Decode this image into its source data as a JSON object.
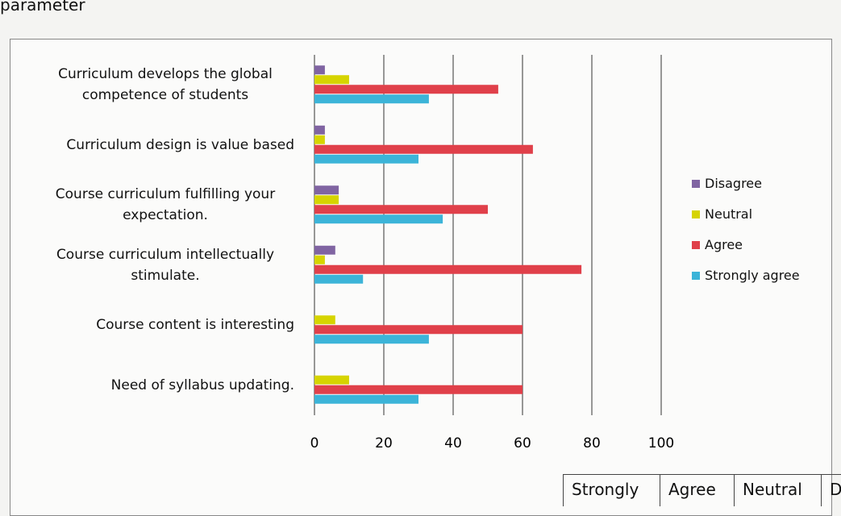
{
  "caption": "parameter",
  "chart_data": {
    "type": "hbar",
    "categories": [
      "Curriculum develops the global competence of students",
      "Curriculum design is value based",
      "Course curriculum fulfilling your expectation.",
      "Course curriculum intellectually stimulate.",
      "Course content is interesting",
      "Need of syllabus updating."
    ],
    "series": [
      {
        "name": "Disagree",
        "color": "#8064a2",
        "values": [
          3,
          3,
          7,
          6,
          0,
          0
        ]
      },
      {
        "name": "Neutral",
        "color": "#d6d400",
        "values": [
          10,
          3,
          7,
          3,
          6,
          10
        ]
      },
      {
        "name": "Agree",
        "color": "#e0404a",
        "values": [
          53,
          63,
          50,
          77,
          60,
          60
        ]
      },
      {
        "name": "Strongly agree",
        "color": "#3cb4d8",
        "values": [
          33,
          30,
          37,
          14,
          33,
          30
        ]
      }
    ],
    "xlim": [
      0,
      100
    ],
    "xticks": [
      0,
      20,
      40,
      60,
      80,
      100
    ],
    "grid": true,
    "legend": "right"
  },
  "table": {
    "header": [
      "Strongly",
      "Agree",
      "Neutral",
      "D"
    ]
  }
}
